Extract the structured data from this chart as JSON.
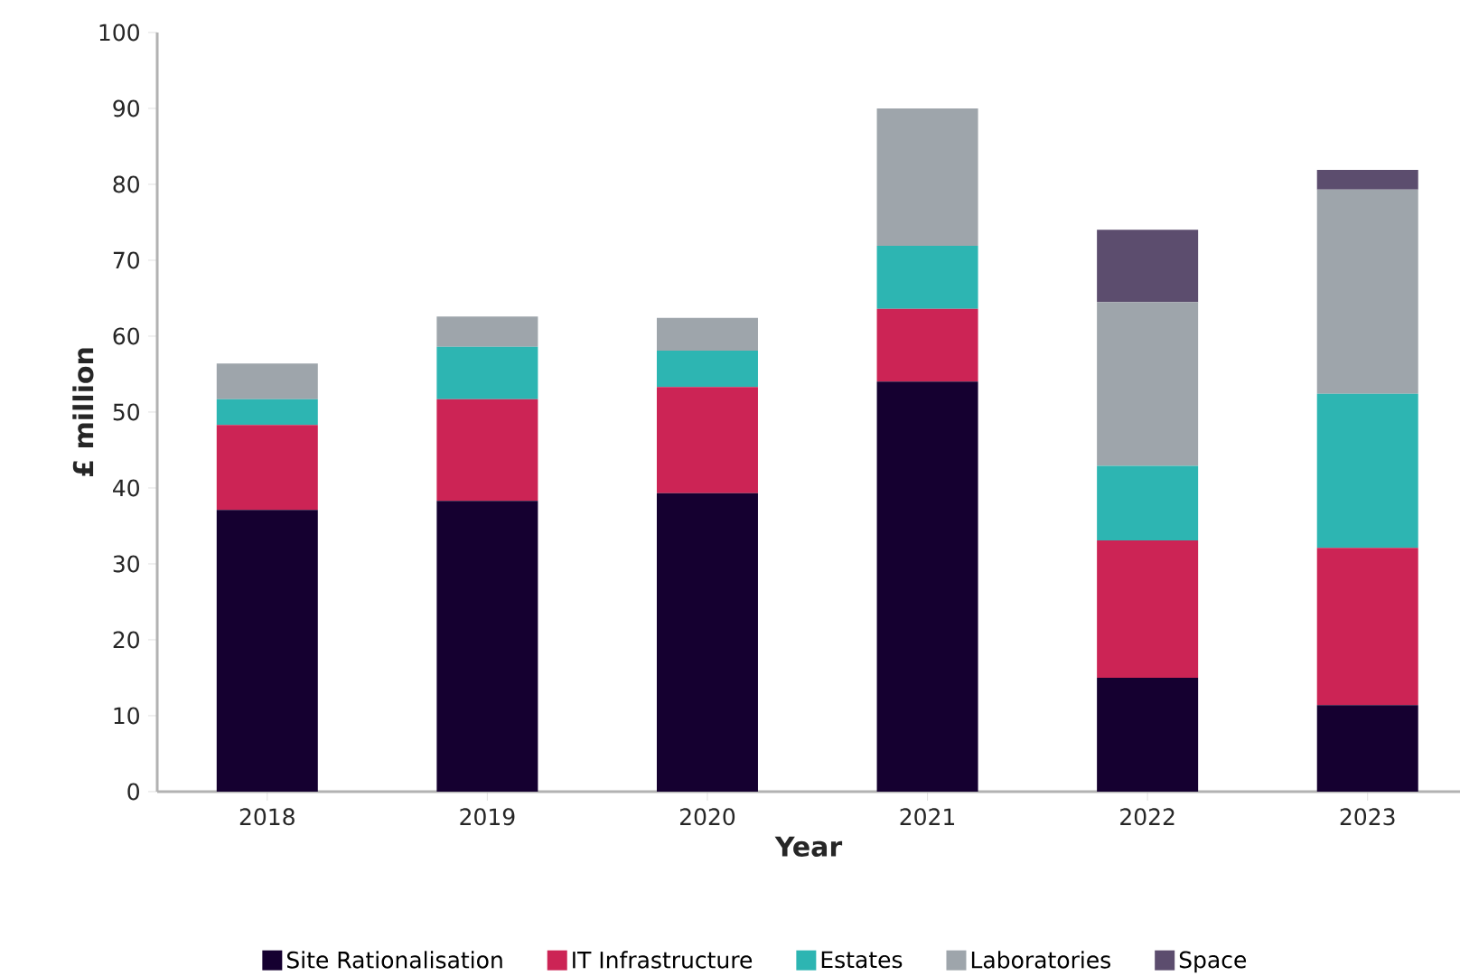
{
  "chart_data": {
    "type": "bar",
    "stacked": true,
    "xlabel": "Year",
    "ylabel": "£ million",
    "categories": [
      "2018",
      "2019",
      "2020",
      "2021",
      "2022",
      "2023"
    ],
    "series": [
      {
        "name": "Site Rationalisation",
        "color": "#150030",
        "values": [
          37.1,
          38.3,
          39.3,
          54.0,
          15.0,
          11.4
        ]
      },
      {
        "name": "IT Infrastructure",
        "color": "#cc2455",
        "values": [
          11.2,
          13.4,
          14.0,
          9.6,
          18.1,
          20.7
        ]
      },
      {
        "name": "Estates",
        "color": "#2db5b2",
        "values": [
          3.4,
          6.9,
          4.8,
          8.3,
          9.8,
          20.3
        ]
      },
      {
        "name": "Laboratories",
        "color": "#9ea5ab",
        "values": [
          4.7,
          4.0,
          4.3,
          18.1,
          21.6,
          26.9
        ]
      },
      {
        "name": "Space",
        "color": "#5c4d6e",
        "values": [
          null,
          null,
          null,
          null,
          9.5,
          2.6
        ]
      }
    ],
    "ylim": [
      0,
      100
    ],
    "yticks": [
      0,
      10,
      20,
      30,
      40,
      50,
      60,
      70,
      80,
      90,
      100
    ],
    "grid": false,
    "legend": "bottom"
  }
}
